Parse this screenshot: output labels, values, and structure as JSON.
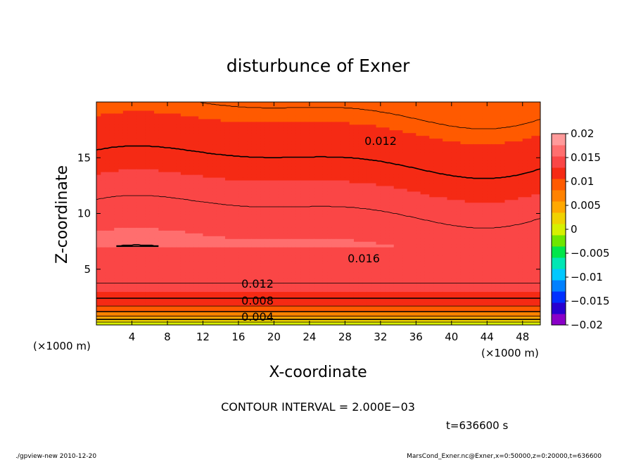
{
  "chart_data": {
    "type": "heatmap",
    "subtype": "filled-contour",
    "title": "disturbunce of Exner",
    "xlabel": "X-coordinate",
    "ylabel": "Z-coordinate",
    "x_unit_label": "(×1000 m)",
    "y_unit_label": "(×1000 m)",
    "xlim": [
      0,
      50
    ],
    "ylim": [
      0,
      20
    ],
    "x_ticks": [
      4,
      8,
      12,
      16,
      20,
      24,
      28,
      32,
      36,
      40,
      44,
      48
    ],
    "y_ticks": [
      5,
      10,
      15
    ],
    "colorbar": {
      "min": -0.02,
      "max": 0.02,
      "ticks": [
        0.02,
        0.015,
        0.01,
        0.005,
        0,
        -0.005,
        -0.01,
        -0.015,
        -0.02
      ],
      "tick_labels": [
        "0.02",
        "0.015",
        "0.01",
        "0.005",
        "0",
        "−0.005",
        "−0.01",
        "−0.015",
        "−0.02"
      ]
    },
    "contour_interval": 0.002,
    "contour_labels": [
      "0.004",
      "0.008",
      "0.012",
      "0.012",
      "0.016"
    ],
    "contour_levels_labeled": [
      0.004,
      0.008,
      0.012,
      0.016
    ],
    "field_description": "Values increase with height from ~0 at the surface to ~0.015 near z≈6–8 km, then decrease to ~0.010 near the top.",
    "notes": [
      "CONTOUR INTERVAL = 2.000E−03",
      "t=636600 s"
    ]
  },
  "footer": {
    "left": "./gpview-new   2010-12-20",
    "right": "MarsCond_Exner.nc@Exner,x=0:50000,z=0:20000,t=636600"
  },
  "colors": {
    "palette": [
      "#8a00c8",
      "#2800d0",
      "#0030ff",
      "#0080ff",
      "#00c8ff",
      "#00e6b4",
      "#00e64a",
      "#6ee600",
      "#d6f000",
      "#f0d200",
      "#ffa800",
      "#ff8200",
      "#ff5a00",
      "#f52a14",
      "#fa4646",
      "#ff6e6e",
      "#ff9a9a"
    ]
  }
}
